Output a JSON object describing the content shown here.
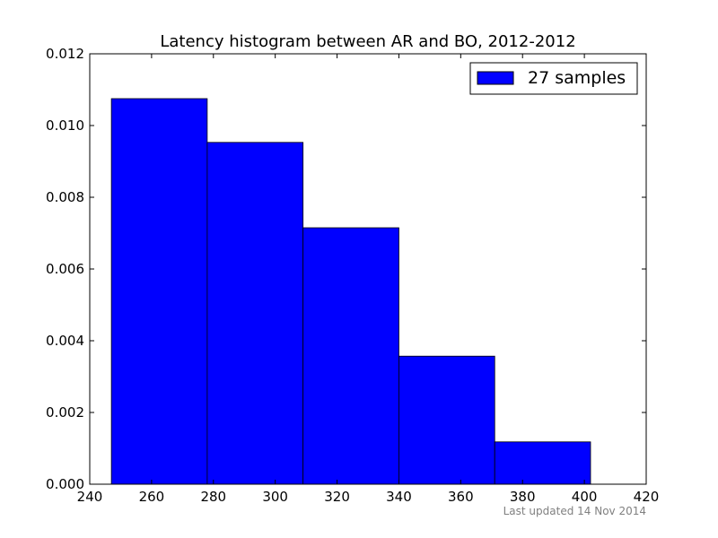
{
  "chart_data": {
    "type": "bar",
    "title": "Latency histogram between AR and BO, 2012-2012",
    "xlabel": "",
    "ylabel": "",
    "xlim": [
      240,
      420
    ],
    "ylim": [
      0,
      0.012
    ],
    "x_ticks": [
      "240",
      "260",
      "280",
      "300",
      "320",
      "340",
      "360",
      "380",
      "400",
      "420"
    ],
    "x_tick_values": [
      240,
      260,
      280,
      300,
      320,
      340,
      360,
      380,
      400,
      420
    ],
    "y_ticks": [
      "0.000",
      "0.002",
      "0.004",
      "0.006",
      "0.008",
      "0.010",
      "0.012"
    ],
    "y_tick_values": [
      0,
      0.002,
      0.004,
      0.006,
      0.008,
      0.01,
      0.012
    ],
    "bins": [
      {
        "x0": 247,
        "x1": 278,
        "value": 0.01075
      },
      {
        "x0": 278,
        "x1": 309,
        "value": 0.00953
      },
      {
        "x0": 309,
        "x1": 340,
        "value": 0.00715
      },
      {
        "x0": 340,
        "x1": 371,
        "value": 0.00357
      },
      {
        "x0": 371,
        "x1": 402,
        "value": 0.00118
      }
    ],
    "series": [
      {
        "name": "27 samples",
        "color": "#0000ff"
      }
    ],
    "legend_position": "top-right",
    "grid": false
  },
  "footer": {
    "updated": "Last updated 14 Nov 2014"
  }
}
